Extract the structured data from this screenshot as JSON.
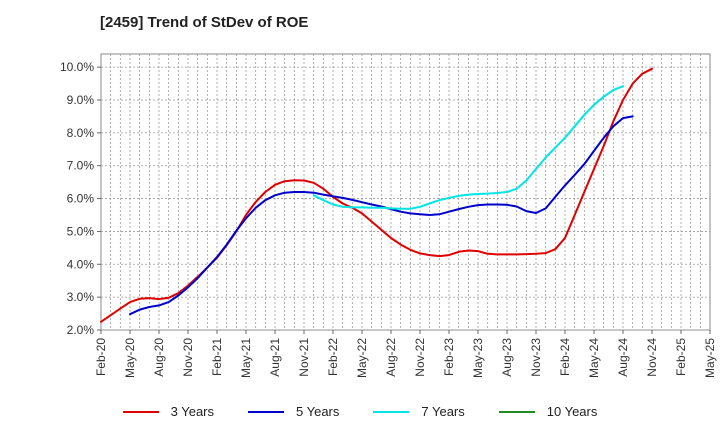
{
  "title": "[2459]  Trend of StDev of ROE",
  "chart_data": {
    "type": "line",
    "title": "[2459]  Trend of StDev of ROE",
    "xlabel": "",
    "ylabel": "",
    "x_ticks": [
      "Feb-20",
      "May-20",
      "Aug-20",
      "Nov-20",
      "Feb-21",
      "May-21",
      "Aug-21",
      "Nov-21",
      "Feb-22",
      "May-22",
      "Aug-22",
      "Nov-22",
      "Feb-23",
      "May-23",
      "Aug-23",
      "Nov-23",
      "Feb-24",
      "May-24",
      "Aug-24",
      "Nov-24",
      "Feb-25",
      "May-25"
    ],
    "y_ticks": [
      "2.0%",
      "3.0%",
      "4.0%",
      "5.0%",
      "6.0%",
      "7.0%",
      "8.0%",
      "9.0%",
      "10.0%"
    ],
    "ylim": [
      2.0,
      10.4
    ],
    "grid": true,
    "legend_position": "bottom",
    "x_start_index": 0,
    "series": [
      {
        "name": "3 Years",
        "color": "#e00000",
        "start_index": 0,
        "values": [
          2.25,
          2.45,
          2.65,
          2.85,
          2.95,
          2.97,
          2.94,
          2.98,
          3.12,
          3.35,
          3.62,
          3.9,
          4.2,
          4.58,
          5.0,
          5.5,
          5.9,
          6.2,
          6.42,
          6.53,
          6.56,
          6.55,
          6.48,
          6.3,
          6.05,
          5.85,
          5.72,
          5.55,
          5.3,
          5.05,
          4.8,
          4.6,
          4.44,
          4.33,
          4.28,
          4.25,
          4.28,
          4.38,
          4.42,
          4.4,
          4.32,
          4.3,
          4.3,
          4.3,
          4.31,
          4.32,
          4.34,
          4.46,
          4.8,
          5.5,
          6.2,
          6.9,
          7.6,
          8.35,
          9.0,
          9.5,
          9.8,
          9.95
        ]
      },
      {
        "name": "5 Years",
        "color": "#0000cc",
        "start_index": 3,
        "values": [
          2.48,
          2.62,
          2.7,
          2.75,
          2.85,
          3.05,
          3.3,
          3.58,
          3.9,
          4.22,
          4.6,
          5.02,
          5.4,
          5.72,
          5.95,
          6.1,
          6.18,
          6.2,
          6.2,
          6.18,
          6.12,
          6.07,
          6.02,
          5.96,
          5.89,
          5.82,
          5.76,
          5.68,
          5.6,
          5.55,
          5.52,
          5.5,
          5.52,
          5.6,
          5.68,
          5.75,
          5.8,
          5.82,
          5.82,
          5.81,
          5.76,
          5.62,
          5.56,
          5.7,
          6.05,
          6.4,
          6.72,
          7.05,
          7.45,
          7.85,
          8.2,
          8.45,
          8.5
        ]
      },
      {
        "name": "7 Years",
        "color": "#00e5e5",
        "start_index": 22,
        "values": [
          6.1,
          5.95,
          5.82,
          5.75,
          5.73,
          5.73,
          5.72,
          5.72,
          5.7,
          5.69,
          5.69,
          5.75,
          5.85,
          5.95,
          6.02,
          6.08,
          6.12,
          6.14,
          6.15,
          6.17,
          6.2,
          6.3,
          6.55,
          6.9,
          7.25,
          7.55,
          7.85,
          8.2,
          8.55,
          8.85,
          9.1,
          9.3,
          9.42
        ]
      },
      {
        "name": "10 Years",
        "color": "#228b22",
        "start_index": 0,
        "values": []
      }
    ]
  }
}
